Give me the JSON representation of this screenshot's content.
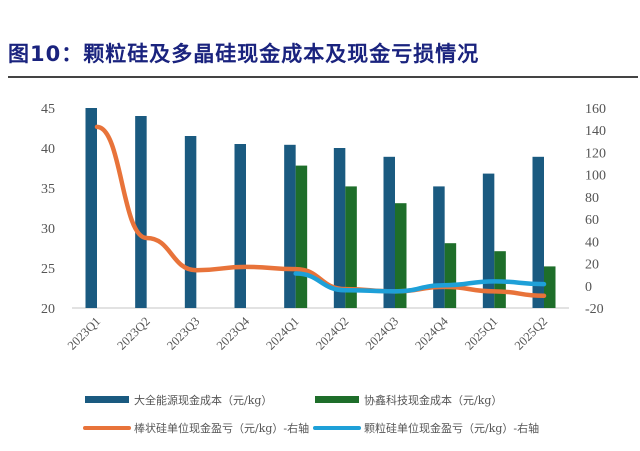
{
  "title": "图10：颗粒硅及多晶硅现金成本及现金亏损情况",
  "chart_data": {
    "type": "bar",
    "title": "图10：颗粒硅及多晶硅现金成本及现金亏损情况",
    "categories": [
      "2023Q1",
      "2023Q2",
      "2023Q3",
      "2023Q4",
      "2024Q1",
      "2024Q2",
      "2024Q3",
      "2024Q4",
      "2025Q1",
      "2025Q2"
    ],
    "left_axis": {
      "min": 20,
      "max": 45,
      "ticks": [
        "20",
        "25",
        "30",
        "35",
        "40",
        "45"
      ]
    },
    "right_axis": {
      "min": -20,
      "max": 160,
      "ticks": [
        "-20",
        "0",
        "20",
        "40",
        "60",
        "80",
        "100",
        "120",
        "140",
        "160"
      ]
    },
    "series": [
      {
        "name": "大全能源现金成本（元/kg）",
        "type": "bar",
        "axis": "left",
        "color": "#1a5a80",
        "values": [
          45.0,
          44.0,
          41.5,
          40.5,
          40.4,
          40.0,
          38.9,
          35.2,
          36.8,
          38.9
        ]
      },
      {
        "name": "协鑫科技现金成本（元/kg）",
        "type": "bar",
        "axis": "left",
        "color": "#1e6e2a",
        "values": [
          null,
          null,
          null,
          null,
          37.8,
          35.2,
          33.1,
          28.1,
          27.1,
          25.2
        ]
      },
      {
        "name": "棒状硅单位现金盈亏（元/kg）-右轴",
        "type": "line",
        "axis": "right",
        "color": "#e8733a",
        "values": [
          143,
          43,
          14,
          17,
          15,
          -3,
          -5,
          -1,
          -5,
          -9
        ]
      },
      {
        "name": "颗粒硅单位现金盈亏（元/kg）-右轴",
        "type": "line",
        "axis": "right",
        "color": "#1ea0d8",
        "values": [
          null,
          null,
          null,
          null,
          11,
          -4,
          -5,
          0.5,
          4,
          1.5
        ]
      }
    ],
    "legend_position": "bottom",
    "grid": false
  }
}
